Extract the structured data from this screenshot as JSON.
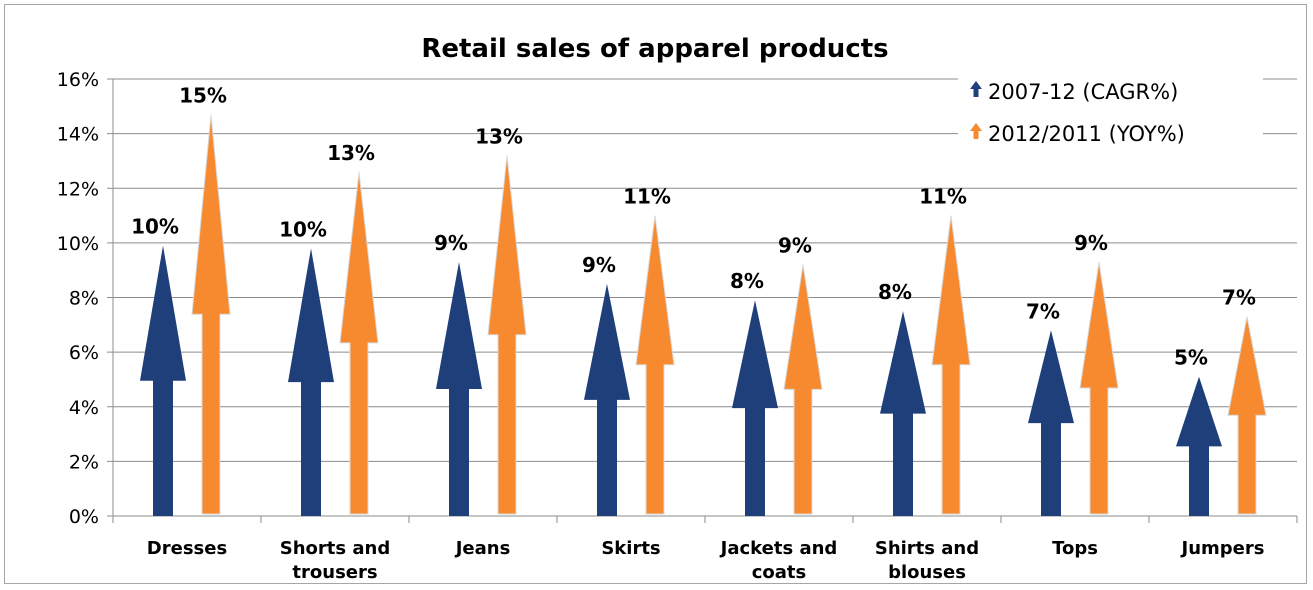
{
  "chart_data": {
    "type": "bar",
    "title": "Retail sales of apparel products",
    "categories": [
      "Dresses",
      "Shorts and trousers",
      "Jeans",
      "Skirts",
      "Jackets and coats",
      "Shirts and blouses",
      "Tops",
      "Jumpers"
    ],
    "category_lines": [
      [
        "Dresses"
      ],
      [
        "Shorts and",
        "trousers"
      ],
      [
        "Jeans"
      ],
      [
        "Skirts"
      ],
      [
        "Jackets and",
        "coats"
      ],
      [
        "Shirts and",
        "blouses"
      ],
      [
        "Tops"
      ],
      [
        "Jumpers"
      ]
    ],
    "series": [
      {
        "name": "2007-12 (CAGR%)",
        "color": "#1f3f7a",
        "values": [
          9.9,
          9.8,
          9.3,
          8.5,
          7.9,
          7.5,
          6.8,
          5.1
        ],
        "labels": [
          "10%",
          "10%",
          "9%",
          "9%",
          "8%",
          "8%",
          "7%",
          "5%"
        ]
      },
      {
        "name": "2012/2011 (YOY%)",
        "color": "#f7892f",
        "values": [
          14.7,
          12.6,
          13.2,
          11.0,
          9.2,
          11.0,
          9.3,
          7.3
        ],
        "labels": [
          "15%",
          "13%",
          "13%",
          "11%",
          "9%",
          "11%",
          "9%",
          "7%"
        ]
      }
    ],
    "y_ticks": [
      "0%",
      "2%",
      "4%",
      "6%",
      "8%",
      "10%",
      "12%",
      "14%",
      "16%"
    ],
    "ylim": [
      0,
      16
    ],
    "ylabel": "",
    "xlabel": "",
    "grid": true,
    "legend_position": "top-right",
    "marker": "arrow"
  }
}
